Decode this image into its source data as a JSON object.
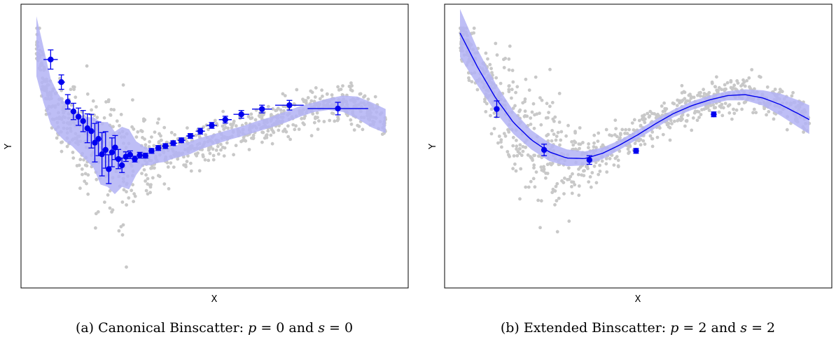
{
  "chart_data": [
    {
      "type": "scatter",
      "caption": {
        "prefix": "(a) Canonical Binscatter: ",
        "p": "p",
        "eq1": " = 0 and ",
        "s": "s",
        "eq2": " = 0"
      },
      "xlabel": "X",
      "ylabel": "Y",
      "xlim": [
        0,
        1
      ],
      "ylim": [
        -3.5,
        2.4
      ],
      "grid": false,
      "legend": "none",
      "colors": {
        "points": "#c8c8c8",
        "fit": "#0000ee",
        "band": "#b3b3f5"
      },
      "band": {
        "x": [
          0.0,
          0.02,
          0.04,
          0.06,
          0.08,
          0.1,
          0.12,
          0.14,
          0.16,
          0.18,
          0.2,
          0.22,
          0.24,
          0.26,
          0.28,
          0.3,
          0.32,
          0.34,
          0.36,
          0.38,
          0.4,
          0.43,
          0.46,
          0.5,
          0.54,
          0.58,
          0.62,
          0.66,
          0.7,
          0.74,
          0.78,
          0.82,
          0.86,
          0.9,
          0.94,
          0.98
        ],
        "lower": [
          0.9,
          0.35,
          -0.1,
          -0.3,
          -0.45,
          -0.55,
          -0.7,
          -0.85,
          -1.0,
          -1.35,
          -1.4,
          -1.55,
          -1.4,
          -1.45,
          -1.15,
          -0.95,
          -0.95,
          -0.9,
          -0.88,
          -0.82,
          -0.78,
          -0.72,
          -0.62,
          -0.52,
          -0.42,
          -0.34,
          -0.25,
          -0.16,
          -0.06,
          0.06,
          0.16,
          0.2,
          0.16,
          0.02,
          -0.16,
          -0.28
        ],
        "upper": [
          2.15,
          1.5,
          0.85,
          0.55,
          0.35,
          0.2,
          0.1,
          0.05,
          0.05,
          -0.05,
          -0.05,
          -0.25,
          -0.15,
          -0.2,
          -0.45,
          -0.55,
          -0.62,
          -0.62,
          -0.6,
          -0.56,
          -0.52,
          -0.46,
          -0.38,
          -0.3,
          -0.21,
          -0.13,
          -0.03,
          0.06,
          0.17,
          0.28,
          0.36,
          0.44,
          0.5,
          0.48,
          0.36,
          0.22
        ]
      },
      "fit": {
        "mode": "step",
        "points": [
          {
            "x": 0.04,
            "y": 1.25,
            "err": 0.2,
            "half": 0.02
          },
          {
            "x": 0.07,
            "y": 0.78,
            "err": 0.15,
            "half": 0.01
          },
          {
            "x": 0.088,
            "y": 0.37,
            "err": 0.15,
            "half": 0.008
          },
          {
            "x": 0.104,
            "y": 0.17,
            "err": 0.17,
            "half": 0.008
          },
          {
            "x": 0.118,
            "y": 0.06,
            "err": 0.18,
            "half": 0.007
          },
          {
            "x": 0.131,
            "y": -0.03,
            "err": 0.22,
            "half": 0.007
          },
          {
            "x": 0.143,
            "y": -0.18,
            "err": 0.3,
            "half": 0.006
          },
          {
            "x": 0.154,
            "y": -0.24,
            "err": 0.35,
            "half": 0.006
          },
          {
            "x": 0.164,
            "y": -0.48,
            "err": 0.4,
            "half": 0.005
          },
          {
            "x": 0.174,
            "y": -0.4,
            "err": 0.35,
            "half": 0.005
          },
          {
            "x": 0.184,
            "y": -0.72,
            "err": 0.45,
            "half": 0.005
          },
          {
            "x": 0.194,
            "y": -0.63,
            "err": 0.38,
            "half": 0.005
          },
          {
            "x": 0.203,
            "y": -1.03,
            "err": 0.3,
            "half": 0.005
          },
          {
            "x": 0.212,
            "y": -0.68,
            "err": 0.3,
            "half": 0.004
          },
          {
            "x": 0.221,
            "y": -0.58,
            "err": 0.25,
            "half": 0.004
          },
          {
            "x": 0.23,
            "y": -0.82,
            "err": 0.2,
            "half": 0.004
          },
          {
            "x": 0.24,
            "y": -0.95,
            "err": 0.15,
            "half": 0.004
          },
          {
            "x": 0.251,
            "y": -0.77,
            "err": 0.1,
            "half": 0.005
          },
          {
            "x": 0.263,
            "y": -0.73,
            "err": 0.08,
            "half": 0.005
          },
          {
            "x": 0.276,
            "y": -0.82,
            "err": 0.06,
            "half": 0.006
          },
          {
            "x": 0.29,
            "y": -0.74,
            "err": 0.06,
            "half": 0.006
          },
          {
            "x": 0.306,
            "y": -0.75,
            "err": 0.05,
            "half": 0.007
          },
          {
            "x": 0.323,
            "y": -0.65,
            "err": 0.05,
            "half": 0.008
          },
          {
            "x": 0.342,
            "y": -0.59,
            "err": 0.05,
            "half": 0.009
          },
          {
            "x": 0.362,
            "y": -0.55,
            "err": 0.05,
            "half": 0.01
          },
          {
            "x": 0.384,
            "y": -0.49,
            "err": 0.05,
            "half": 0.011
          },
          {
            "x": 0.407,
            "y": -0.43,
            "err": 0.05,
            "half": 0.011
          },
          {
            "x": 0.432,
            "y": -0.34,
            "err": 0.05,
            "half": 0.012
          },
          {
            "x": 0.46,
            "y": -0.24,
            "err": 0.06,
            "half": 0.013
          },
          {
            "x": 0.492,
            "y": -0.12,
            "err": 0.06,
            "half": 0.015
          },
          {
            "x": 0.53,
            "y": 0.0,
            "err": 0.07,
            "half": 0.018
          },
          {
            "x": 0.575,
            "y": 0.11,
            "err": 0.08,
            "half": 0.022
          },
          {
            "x": 0.633,
            "y": 0.22,
            "err": 0.08,
            "half": 0.028
          },
          {
            "x": 0.71,
            "y": 0.3,
            "err": 0.1,
            "half": 0.04
          },
          {
            "x": 0.846,
            "y": 0.23,
            "err": 0.13,
            "half": 0.085
          }
        ]
      }
    },
    {
      "type": "scatter",
      "caption": {
        "prefix": "(b) Extended Binscatter: ",
        "p": "p",
        "eq1": " = 2 and ",
        "s": "s",
        "eq2": " = 2"
      },
      "xlabel": "X",
      "ylabel": "Y",
      "xlim": [
        0,
        1
      ],
      "ylim": [
        -3.5,
        2.4
      ],
      "grid": false,
      "legend": "none",
      "colors": {
        "points": "#c8c8c8",
        "fit": "#0000ee",
        "band": "#b3b3f5"
      },
      "band": {
        "x": [
          0.0,
          0.05,
          0.1,
          0.15,
          0.2,
          0.25,
          0.3,
          0.35,
          0.4,
          0.45,
          0.5,
          0.55,
          0.6,
          0.65,
          0.7,
          0.75,
          0.8,
          0.85,
          0.9,
          0.95,
          0.98
        ],
        "lower": [
          1.3,
          0.7,
          0.15,
          -0.3,
          -0.62,
          -0.86,
          -0.97,
          -0.95,
          -0.82,
          -0.62,
          -0.4,
          -0.17,
          0.05,
          0.2,
          0.32,
          0.4,
          0.4,
          0.29,
          0.08,
          -0.16,
          -0.3
        ],
        "upper": [
          2.3,
          1.45,
          0.75,
          0.18,
          -0.22,
          -0.48,
          -0.62,
          -0.66,
          -0.58,
          -0.42,
          -0.21,
          0.01,
          0.21,
          0.38,
          0.5,
          0.59,
          0.63,
          0.61,
          0.54,
          0.4,
          0.3
        ]
      },
      "fit": {
        "mode": "curve",
        "curve": {
          "x": [
            0.0,
            0.05,
            0.1,
            0.15,
            0.2,
            0.25,
            0.3,
            0.35,
            0.4,
            0.45,
            0.5,
            0.55,
            0.6,
            0.65,
            0.7,
            0.75,
            0.8,
            0.85,
            0.9,
            0.95,
            0.98
          ],
          "y": [
            1.8,
            1.08,
            0.45,
            -0.06,
            -0.42,
            -0.67,
            -0.8,
            -0.81,
            -0.7,
            -0.52,
            -0.31,
            -0.08,
            0.13,
            0.29,
            0.41,
            0.5,
            0.52,
            0.45,
            0.31,
            0.12,
            0.0
          ]
        },
        "points": [
          {
            "x": 0.103,
            "y": 0.22,
            "err": 0.17,
            "half": 0
          },
          {
            "x": 0.236,
            "y": -0.63,
            "err": 0.12,
            "half": 0
          },
          {
            "x": 0.363,
            "y": -0.84,
            "err": 0.09,
            "half": 0
          },
          {
            "x": 0.494,
            "y": -0.65,
            "err": 0.05,
            "half": 0
          },
          {
            "x": 0.712,
            "y": 0.11,
            "err": 0.05,
            "half": 0
          }
        ]
      }
    }
  ]
}
